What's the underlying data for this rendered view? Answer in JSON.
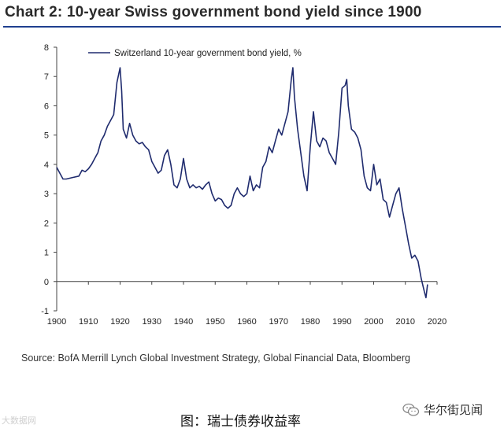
{
  "title": "Chart 2: 10-year Swiss government bond yield since 1900",
  "chart_data": {
    "type": "line",
    "title": "Chart 2: 10-year Swiss government bond yield since 1900",
    "xlabel": "",
    "ylabel": "",
    "xlim": [
      1900,
      2020
    ],
    "ylim": [
      -1,
      8
    ],
    "x_ticks": [
      "1900",
      "1910",
      "1920",
      "1930",
      "1940",
      "1950",
      "1960",
      "1970",
      "1980",
      "1990",
      "2000",
      "2010",
      "2020"
    ],
    "y_ticks": [
      "-1",
      "0",
      "1",
      "2",
      "3",
      "4",
      "5",
      "6",
      "7",
      "8"
    ],
    "legend_position": "top-left",
    "grid": false,
    "series": [
      {
        "name": "Switzerland 10-year government bond yield, %",
        "color": "#1f2b6e",
        "x": [
          1900,
          1901,
          1902,
          1903,
          1905,
          1907,
          1908,
          1909,
          1910,
          1911,
          1912,
          1913,
          1914,
          1915,
          1916,
          1917,
          1918,
          1919,
          1920,
          1920.5,
          1921,
          1922,
          1923,
          1924,
          1925,
          1926,
          1927,
          1928,
          1929,
          1930,
          1931,
          1932,
          1933,
          1934,
          1935,
          1936,
          1937,
          1938,
          1939,
          1940,
          1941,
          1942,
          1943,
          1944,
          1945,
          1946,
          1947,
          1948,
          1949,
          1950,
          1951,
          1952,
          1953,
          1954,
          1955,
          1956,
          1957,
          1958,
          1959,
          1960,
          1961,
          1962,
          1963,
          1964,
          1965,
          1966,
          1967,
          1968,
          1969,
          1970,
          1971,
          1972,
          1973,
          1974,
          1974.5,
          1975,
          1976,
          1977,
          1978,
          1979,
          1980,
          1981,
          1982,
          1983,
          1984,
          1985,
          1986,
          1987,
          1988,
          1989,
          1990,
          1991,
          1991.5,
          1992,
          1993,
          1994,
          1995,
          1996,
          1997,
          1998,
          1999,
          2000,
          2001,
          2002,
          2003,
          2004,
          2005,
          2006,
          2007,
          2008,
          2009,
          2010,
          2011,
          2012,
          2013,
          2014,
          2015,
          2016,
          2016.5,
          2017
        ],
        "values": [
          3.9,
          3.7,
          3.5,
          3.5,
          3.55,
          3.6,
          3.8,
          3.75,
          3.85,
          4.0,
          4.2,
          4.4,
          4.8,
          5.0,
          5.3,
          5.5,
          5.7,
          6.8,
          7.3,
          6.5,
          5.2,
          4.9,
          5.4,
          5.0,
          4.8,
          4.7,
          4.75,
          4.6,
          4.5,
          4.1,
          3.9,
          3.7,
          3.8,
          4.3,
          4.5,
          4.0,
          3.3,
          3.2,
          3.5,
          4.2,
          3.5,
          3.2,
          3.3,
          3.2,
          3.25,
          3.15,
          3.3,
          3.4,
          3.0,
          2.75,
          2.85,
          2.8,
          2.6,
          2.5,
          2.6,
          3.0,
          3.2,
          3.0,
          2.9,
          3.0,
          3.6,
          3.1,
          3.3,
          3.2,
          3.9,
          4.1,
          4.6,
          4.4,
          4.8,
          5.2,
          5.0,
          5.4,
          5.8,
          6.9,
          7.3,
          6.3,
          5.2,
          4.4,
          3.6,
          3.1,
          4.6,
          5.8,
          4.8,
          4.6,
          4.9,
          4.8,
          4.4,
          4.2,
          4.0,
          5.1,
          6.6,
          6.7,
          6.9,
          6.0,
          5.2,
          5.1,
          4.9,
          4.5,
          3.6,
          3.2,
          3.1,
          4.0,
          3.3,
          3.5,
          2.8,
          2.7,
          2.2,
          2.6,
          3.0,
          3.2,
          2.5,
          1.9,
          1.3,
          0.8,
          0.9,
          0.7,
          0.1,
          -0.35,
          -0.55,
          -0.1
        ]
      }
    ]
  },
  "source": "Source: BofA Merrill Lynch Global Investment Strategy, Global Financial Data, Bloomberg",
  "caption": "图：瑞士债券收益率",
  "brand": "华尔街见闻",
  "watermark": "大数据网"
}
